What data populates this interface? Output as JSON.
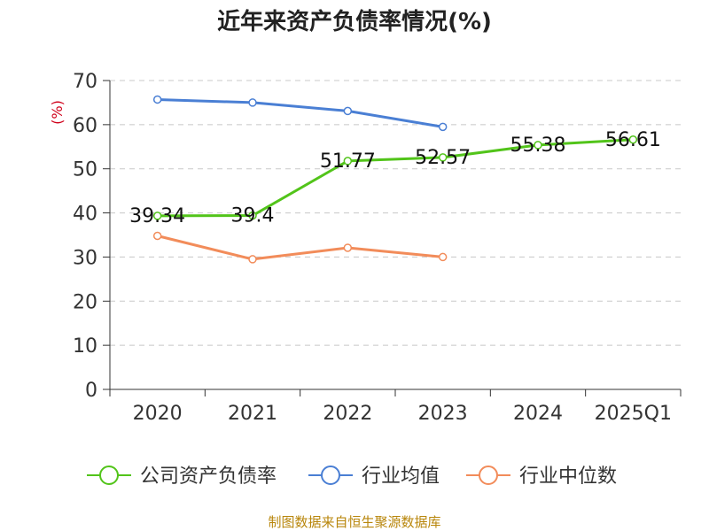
{
  "chart_data": {
    "type": "line",
    "title": "近年来资产负债率情况(%)",
    "unit_label": "(%)",
    "categories": [
      "2020",
      "2021",
      "2022",
      "2023",
      "2024",
      "2025Q1"
    ],
    "ylim": [
      0,
      70
    ],
    "yticks": [
      0,
      10,
      20,
      30,
      40,
      50,
      60,
      70
    ],
    "grid": true,
    "legend_position": "bottom",
    "series": [
      {
        "name": "公司资产负债率",
        "color": "#52c41a",
        "values": [
          39.34,
          39.4,
          51.77,
          52.57,
          55.38,
          56.61
        ],
        "labels": [
          "39.34",
          "39.4",
          "51.77",
          "52.57",
          "55.38",
          "56.61"
        ]
      },
      {
        "name": "行业均值",
        "color": "#4a7fd4",
        "values": [
          65.7,
          65.0,
          63.1,
          59.5,
          null,
          null
        ]
      },
      {
        "name": "行业中位数",
        "color": "#f28c5a",
        "values": [
          34.8,
          29.5,
          32.1,
          30.0,
          null,
          null
        ]
      }
    ],
    "source": "制图数据来自恒生聚源数据库"
  }
}
